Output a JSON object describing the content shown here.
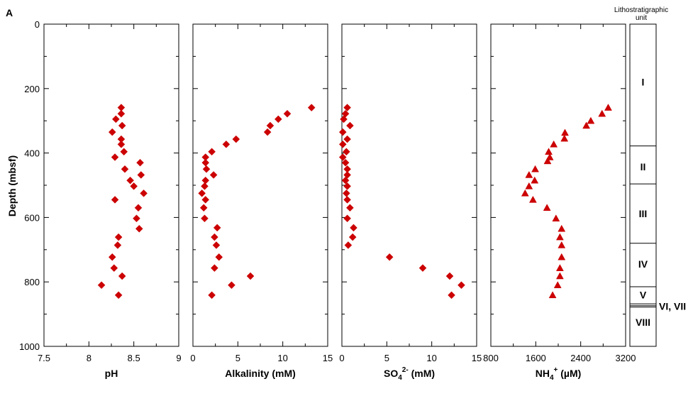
{
  "panel_letter": "A",
  "ylabel": "Depth (mbsf)",
  "litho_title_lines": [
    "Lithostratigraphic",
    "unit"
  ],
  "colors": {
    "marker": "#cc0000",
    "axis": "#000000"
  },
  "chart_data": [
    {
      "type": "scatter",
      "xlabel": "pH",
      "ylabel": "Depth (mbsf)",
      "marker": "diamond",
      "xlim": [
        7.5,
        9
      ],
      "ylim": [
        0,
        1000
      ],
      "y_inverted": true,
      "x_ticks": [
        7.5,
        8,
        8.5,
        9
      ],
      "x_tick_labels": [
        "7.5",
        "8",
        "8.5",
        "9"
      ],
      "y_ticks": [
        0,
        200,
        400,
        600,
        800,
        1000
      ],
      "y_tick_labels": [
        "0",
        "200",
        "400",
        "600",
        "800",
        "1000"
      ],
      "points": [
        {
          "x": 8.36,
          "y": 259
        },
        {
          "x": 8.36,
          "y": 278
        },
        {
          "x": 8.3,
          "y": 295
        },
        {
          "x": 8.37,
          "y": 315
        },
        {
          "x": 8.26,
          "y": 335
        },
        {
          "x": 8.36,
          "y": 357
        },
        {
          "x": 8.36,
          "y": 373
        },
        {
          "x": 8.39,
          "y": 396
        },
        {
          "x": 8.29,
          "y": 413
        },
        {
          "x": 8.57,
          "y": 430
        },
        {
          "x": 8.4,
          "y": 450
        },
        {
          "x": 8.58,
          "y": 468
        },
        {
          "x": 8.46,
          "y": 485
        },
        {
          "x": 8.5,
          "y": 503
        },
        {
          "x": 8.61,
          "y": 525
        },
        {
          "x": 8.29,
          "y": 545
        },
        {
          "x": 8.55,
          "y": 570
        },
        {
          "x": 8.53,
          "y": 603
        },
        {
          "x": 8.56,
          "y": 635
        },
        {
          "x": 8.33,
          "y": 661
        },
        {
          "x": 8.32,
          "y": 686
        },
        {
          "x": 8.26,
          "y": 723
        },
        {
          "x": 8.28,
          "y": 757
        },
        {
          "x": 8.37,
          "y": 782
        },
        {
          "x": 8.14,
          "y": 810
        },
        {
          "x": 8.33,
          "y": 841
        }
      ]
    },
    {
      "type": "scatter",
      "xlabel": "Alkalinity (mM)",
      "marker": "diamond",
      "xlim": [
        0,
        15
      ],
      "ylim": [
        0,
        1000
      ],
      "y_inverted": true,
      "x_ticks": [
        0,
        5,
        10,
        15
      ],
      "x_tick_labels": [
        "0",
        "5",
        "10",
        "15"
      ],
      "points": [
        {
          "x": 13.2,
          "y": 259
        },
        {
          "x": 10.5,
          "y": 278
        },
        {
          "x": 9.5,
          "y": 295
        },
        {
          "x": 8.6,
          "y": 315
        },
        {
          "x": 8.3,
          "y": 335
        },
        {
          "x": 4.8,
          "y": 357
        },
        {
          "x": 3.7,
          "y": 373
        },
        {
          "x": 2.1,
          "y": 396
        },
        {
          "x": 1.4,
          "y": 413
        },
        {
          "x": 1.4,
          "y": 430
        },
        {
          "x": 1.5,
          "y": 450
        },
        {
          "x": 2.3,
          "y": 468
        },
        {
          "x": 1.4,
          "y": 485
        },
        {
          "x": 1.3,
          "y": 503
        },
        {
          "x": 1.0,
          "y": 525
        },
        {
          "x": 1.4,
          "y": 545
        },
        {
          "x": 1.2,
          "y": 570
        },
        {
          "x": 1.3,
          "y": 603
        },
        {
          "x": 2.7,
          "y": 632
        },
        {
          "x": 2.4,
          "y": 661
        },
        {
          "x": 2.6,
          "y": 686
        },
        {
          "x": 2.9,
          "y": 723
        },
        {
          "x": 2.4,
          "y": 757
        },
        {
          "x": 6.4,
          "y": 782
        },
        {
          "x": 4.3,
          "y": 810
        },
        {
          "x": 2.1,
          "y": 841
        }
      ]
    },
    {
      "type": "scatter",
      "xlabel_parts": [
        "SO",
        "4",
        "2-",
        " (mM)"
      ],
      "marker": "diamond",
      "xlim": [
        0,
        15
      ],
      "ylim": [
        0,
        1000
      ],
      "y_inverted": true,
      "x_ticks": [
        0,
        5,
        10,
        15
      ],
      "x_tick_labels": [
        "0",
        "5",
        "10",
        "15"
      ],
      "points": [
        {
          "x": 0.6,
          "y": 259
        },
        {
          "x": 0.4,
          "y": 278
        },
        {
          "x": 0.2,
          "y": 295
        },
        {
          "x": 0.9,
          "y": 315
        },
        {
          "x": 0.1,
          "y": 335
        },
        {
          "x": 0.6,
          "y": 357
        },
        {
          "x": 0.1,
          "y": 373
        },
        {
          "x": 0.5,
          "y": 396
        },
        {
          "x": 0.1,
          "y": 413
        },
        {
          "x": 0.4,
          "y": 430
        },
        {
          "x": 0.6,
          "y": 450
        },
        {
          "x": 0.6,
          "y": 468
        },
        {
          "x": 0.4,
          "y": 485
        },
        {
          "x": 0.6,
          "y": 503
        },
        {
          "x": 0.5,
          "y": 525
        },
        {
          "x": 0.6,
          "y": 545
        },
        {
          "x": 0.9,
          "y": 570
        },
        {
          "x": 0.6,
          "y": 603
        },
        {
          "x": 1.3,
          "y": 632
        },
        {
          "x": 1.2,
          "y": 661
        },
        {
          "x": 0.7,
          "y": 686
        },
        {
          "x": 5.3,
          "y": 723
        },
        {
          "x": 9.0,
          "y": 757
        },
        {
          "x": 12.0,
          "y": 782
        },
        {
          "x": 13.3,
          "y": 810
        },
        {
          "x": 12.2,
          "y": 841
        }
      ]
    },
    {
      "type": "scatter",
      "xlabel_parts": [
        "NH",
        "4",
        "+",
        " (µM)"
      ],
      "marker": "triangle",
      "xlim": [
        800,
        3200
      ],
      "ylim": [
        0,
        1000
      ],
      "y_inverted": true,
      "x_ticks": [
        800,
        1600,
        2400,
        3200
      ],
      "x_tick_labels": [
        "800",
        "1600",
        "2400",
        "3200"
      ],
      "points": [
        {
          "x": 2890,
          "y": 259
        },
        {
          "x": 2780,
          "y": 278
        },
        {
          "x": 2580,
          "y": 300
        },
        {
          "x": 2500,
          "y": 315
        },
        {
          "x": 2120,
          "y": 337
        },
        {
          "x": 2110,
          "y": 355
        },
        {
          "x": 1920,
          "y": 373
        },
        {
          "x": 1830,
          "y": 396
        },
        {
          "x": 1850,
          "y": 413
        },
        {
          "x": 1810,
          "y": 425
        },
        {
          "x": 1590,
          "y": 450
        },
        {
          "x": 1480,
          "y": 468
        },
        {
          "x": 1580,
          "y": 485
        },
        {
          "x": 1480,
          "y": 503
        },
        {
          "x": 1410,
          "y": 525
        },
        {
          "x": 1550,
          "y": 545
        },
        {
          "x": 1800,
          "y": 570
        },
        {
          "x": 1960,
          "y": 603
        },
        {
          "x": 2060,
          "y": 635
        },
        {
          "x": 2030,
          "y": 661
        },
        {
          "x": 2060,
          "y": 686
        },
        {
          "x": 2060,
          "y": 723
        },
        {
          "x": 2030,
          "y": 757
        },
        {
          "x": 2030,
          "y": 782
        },
        {
          "x": 1990,
          "y": 810
        },
        {
          "x": 1900,
          "y": 841
        }
      ]
    }
  ],
  "lithostratigraphy": {
    "boundaries_depth": [
      0,
      378,
      496,
      680,
      815,
      868,
      874,
      878,
      1000
    ],
    "units": [
      {
        "label": "I",
        "depth": 180
      },
      {
        "label": "II",
        "depth": 443
      },
      {
        "label": "III",
        "depth": 588
      },
      {
        "label": "IV",
        "depth": 745
      },
      {
        "label": "V",
        "depth": 840
      },
      {
        "label": "VI, VII",
        "depth": 875,
        "outside": true
      },
      {
        "label": "VIII",
        "depth": 925
      }
    ]
  }
}
